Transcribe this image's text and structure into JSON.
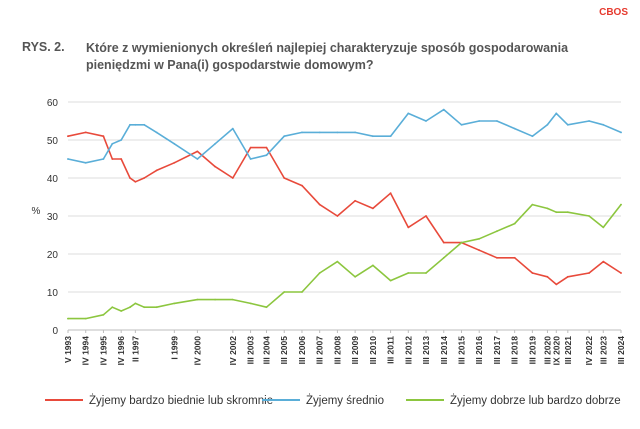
{
  "header": {
    "brand": "CBOS",
    "brand_color": "#e63a2e",
    "figure_label": "RYS. 2.",
    "title_line1": "Które z wymienionych określeń najlepiej charakteryzuje sposób gospodarowania",
    "title_line2": "pieniędzmi w Pana(i) gospodarstwie domowym?"
  },
  "chart_data": {
    "type": "line",
    "title": "Które z wymienionych określeń najlepiej charakteryzuje sposób gospodarowania pieniędzmi w Pana(i) gospodarstwie domowym?",
    "xlabel": "",
    "ylabel": "%",
    "ylim": [
      0,
      60
    ],
    "yticks": [
      0,
      10,
      20,
      30,
      40,
      50,
      60
    ],
    "grid": true,
    "legend_position": "bottom",
    "x": [
      "V 1993",
      "IV 1994",
      "IV 1995",
      "IV 1996",
      "II 1997",
      "I 1999",
      "IV 2000",
      "IV 2002",
      "III 2003",
      "III 2004",
      "III 2005",
      "III 2006",
      "III 2007",
      "III 2008",
      "III 2009",
      "III 2010",
      "III 2011",
      "III 2012",
      "III 2013",
      "III 2014",
      "III 2015",
      "III 2016",
      "III 2017",
      "III 2018",
      "III 2019",
      "III 2020",
      "IX 2020",
      "III 2021",
      "IV 2022",
      "III 2023",
      "III 2024"
    ],
    "x_positions": [
      0,
      1,
      2,
      3,
      3.8,
      6,
      7.3,
      9.3,
      10.3,
      11.2,
      12.2,
      13.2,
      14.2,
      15.2,
      16.2,
      17.2,
      18.2,
      19.2,
      20.2,
      21.2,
      22.2,
      23.2,
      24.2,
      25.2,
      26.2,
      27.05,
      27.55,
      28.2,
      29.4,
      30.2,
      31.2
    ],
    "xlim": [
      0,
      31.2
    ],
    "series": [
      {
        "name": "Żyjemy bardzo biednie lub skromnie",
        "color": "#e84a3b",
        "x": [
          0,
          1,
          2,
          2.5,
          3,
          3.5,
          3.8,
          4.3,
          5,
          6,
          7.3,
          8.3,
          9.3,
          10.3,
          11.2,
          12.2,
          13.2,
          14.2,
          15.2,
          16.2,
          17.2,
          18.2,
          19.2,
          20.2,
          21.2,
          22.2,
          23.2,
          24.2,
          25.2,
          26.2,
          27.05,
          27.55,
          28.2,
          29.4,
          30.2,
          31.2
        ],
        "values": [
          51,
          52,
          51,
          45,
          45,
          40,
          39,
          40,
          42,
          44,
          47,
          43,
          40,
          48,
          48,
          40,
          38,
          33,
          30,
          34,
          32,
          36,
          27,
          30,
          23,
          23,
          21,
          19,
          19,
          15,
          14,
          12,
          14,
          15,
          18,
          15
        ]
      },
      {
        "name": "Żyjemy średnio",
        "color": "#5aaed8",
        "x": [
          0,
          1,
          2,
          2.5,
          3,
          3.5,
          3.8,
          4.3,
          5,
          6,
          7.3,
          8.3,
          9.3,
          10.3,
          11.2,
          12.2,
          13.2,
          14.2,
          15.2,
          16.2,
          17.2,
          18.2,
          19.2,
          20.2,
          21.2,
          22.2,
          23.2,
          24.2,
          25.2,
          26.2,
          27.05,
          27.55,
          28.2,
          29.4,
          30.2,
          31.2
        ],
        "values": [
          45,
          44,
          45,
          49,
          50,
          54,
          54,
          54,
          52,
          49,
          45,
          49,
          53,
          45,
          46,
          51,
          52,
          52,
          52,
          52,
          51,
          51,
          57,
          55,
          58,
          54,
          55,
          55,
          53,
          51,
          54,
          57,
          54,
          55,
          54,
          52
        ]
      },
      {
        "name": "Żyjemy dobrze lub bardzo dobrze",
        "color": "#8cc63f",
        "x": [
          0,
          1,
          2,
          2.5,
          3,
          3.5,
          3.8,
          4.3,
          5,
          6,
          7.3,
          8.3,
          9.3,
          10.3,
          11.2,
          12.2,
          13.2,
          14.2,
          15.2,
          16.2,
          17.2,
          18.2,
          19.2,
          20.2,
          21.2,
          22.2,
          23.2,
          24.2,
          25.2,
          26.2,
          27.05,
          27.55,
          28.2,
          29.4,
          30.2,
          31.2
        ],
        "values": [
          3,
          3,
          4,
          6,
          5,
          6,
          7,
          6,
          6,
          7,
          8,
          8,
          8,
          7,
          6,
          10,
          10,
          15,
          18,
          14,
          17,
          13,
          15,
          15,
          19,
          23,
          24,
          26,
          28,
          33,
          32,
          31,
          31,
          30,
          27,
          33
        ]
      }
    ]
  },
  "legend": [
    {
      "label": "Żyjemy bardzo biednie lub skromnie",
      "color": "#e84a3b"
    },
    {
      "label": "Żyjemy średnio",
      "color": "#5aaed8"
    },
    {
      "label": "Żyjemy dobrze lub bardzo dobrze",
      "color": "#8cc63f"
    }
  ]
}
